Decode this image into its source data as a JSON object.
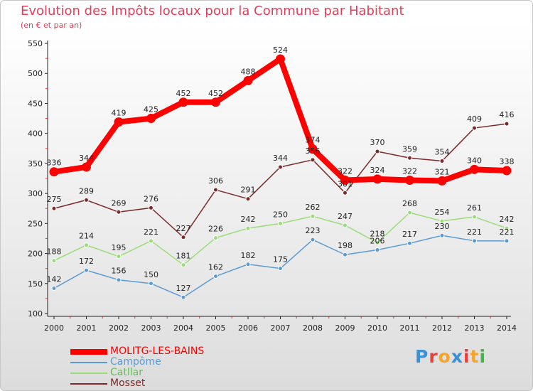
{
  "title": "Evolution des Impôts locaux pour la Commune par Habitant",
  "subtitle": "(en € et par an)",
  "brand": {
    "letters": [
      "P",
      "r",
      "o",
      "x",
      "i",
      "t",
      "i"
    ],
    "colors": [
      "#3e8fd6",
      "#e8403a",
      "#f4a52a",
      "#3a8fd6",
      "#e8403a",
      "#f4a52a",
      "#4caf50"
    ]
  },
  "chart_data": {
    "type": "line",
    "title": "Evolution des Impôts locaux pour la Commune par Habitant",
    "subtitle": "(en € et par an)",
    "x": [
      2000,
      2001,
      2002,
      2003,
      2004,
      2005,
      2006,
      2007,
      2008,
      2009,
      2010,
      2011,
      2012,
      2013,
      2014
    ],
    "yticks": [
      100,
      150,
      200,
      250,
      300,
      350,
      400,
      450,
      500,
      550
    ],
    "ylim": [
      100,
      550
    ],
    "grid": false,
    "legend_position": "bottom-left",
    "series": [
      {
        "name": "MOLITG-LES-BAINS",
        "color": "#ff0000",
        "emphasis": true,
        "values": [
          336,
          344,
          419,
          425,
          452,
          452,
          488,
          524,
          374,
          322,
          324,
          322,
          321,
          340,
          338
        ]
      },
      {
        "name": "Campôme",
        "color": "#5b9bd5",
        "emphasis": false,
        "values": [
          142,
          172,
          156,
          150,
          127,
          162,
          182,
          175,
          223,
          198,
          206,
          217,
          230,
          221,
          221
        ]
      },
      {
        "name": "Catllar",
        "color": "#99dd77",
        "emphasis": false,
        "values": [
          188,
          214,
          195,
          221,
          181,
          226,
          242,
          250,
          262,
          247,
          218,
          268,
          254,
          261,
          242
        ]
      },
      {
        "name": "Mosset",
        "color": "#7b2a2a",
        "emphasis": false,
        "values": [
          275,
          289,
          269,
          276,
          227,
          306,
          291,
          344,
          356,
          301,
          370,
          359,
          354,
          409,
          416
        ]
      }
    ]
  }
}
